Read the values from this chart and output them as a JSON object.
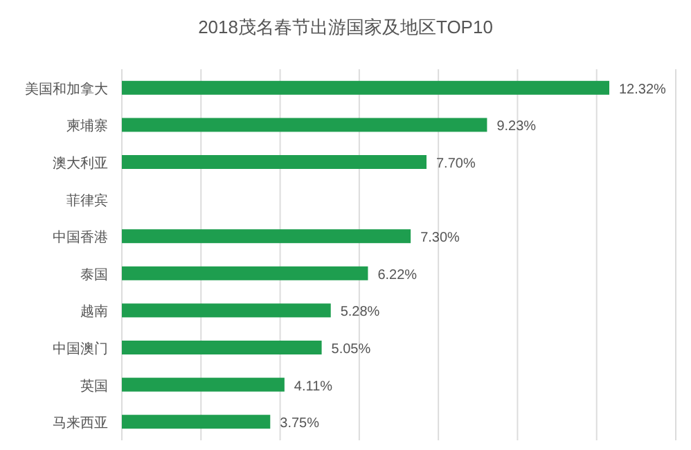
{
  "chart_data": {
    "type": "bar",
    "orientation": "horizontal",
    "title": "2018茂名春节出游国家及地区TOP10",
    "categories": [
      "美国和加拿大",
      "柬埔寨",
      "澳大利亚",
      "菲律宾",
      "中国香港",
      "泰国",
      "越南",
      "中国澳门",
      "英国",
      "马来西亚"
    ],
    "values": [
      12.32,
      9.23,
      7.7,
      null,
      7.3,
      6.22,
      5.28,
      5.05,
      4.11,
      3.75
    ],
    "value_labels": [
      "12.32%",
      "9.23%",
      "7.70%",
      null,
      "7.30%",
      "6.22%",
      "5.28%",
      "5.05%",
      "4.11%",
      "3.75%"
    ],
    "color": "#1e9e4f",
    "xlim": [
      0,
      14
    ],
    "xticks": [
      {
        "value": 0,
        "label": null
      },
      {
        "value": 2,
        "label": null
      },
      {
        "value": 4,
        "label": null
      },
      {
        "value": 6,
        "label": null
      },
      {
        "value": 8,
        "label": null
      },
      {
        "value": 10,
        "label": null
      },
      {
        "value": 12,
        "label": null
      },
      {
        "value": 14,
        "label": null
      }
    ],
    "grid": "x"
  }
}
